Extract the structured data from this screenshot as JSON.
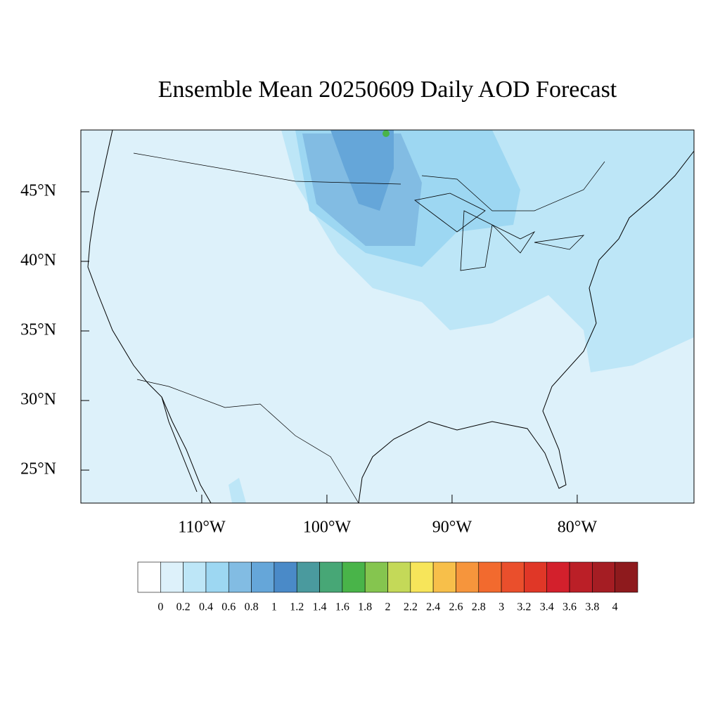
{
  "title": "Ensemble Mean 20250609 Daily AOD Forecast",
  "map": {
    "xlim": [
      -119.66,
      -70.67
    ],
    "ylim": [
      22.63,
      49.44
    ],
    "xticks": [
      {
        "value": -110,
        "label": "110°W"
      },
      {
        "value": -100,
        "label": "100°W"
      },
      {
        "value": -90,
        "label": "90°W"
      },
      {
        "value": -80,
        "label": "80°W"
      }
    ],
    "yticks": [
      {
        "value": 25,
        "label": "25°N"
      },
      {
        "value": 30,
        "label": "30°N"
      },
      {
        "value": 35,
        "label": "35°N"
      },
      {
        "value": 40,
        "label": "40°N"
      },
      {
        "value": 45,
        "label": "45°N"
      }
    ]
  },
  "colorbar": {
    "levels": [
      0,
      0.2,
      0.4,
      0.6,
      0.8,
      1,
      1.2,
      1.4,
      1.6,
      1.8,
      2,
      2.2,
      2.4,
      2.6,
      2.8,
      3,
      3.2,
      3.4,
      3.6,
      3.8,
      4
    ],
    "colors": [
      "#ffffff",
      "#ddf1fa",
      "#bde6f7",
      "#9dd7f2",
      "#82bce3",
      "#65a6d9",
      "#4a8ac8",
      "#4a9a9e",
      "#47a776",
      "#49b449",
      "#85c54f",
      "#c4d958",
      "#f7e55a",
      "#f7bf4a",
      "#f6953c",
      "#f26a2e",
      "#ea4f2c",
      "#e03727",
      "#d3202c",
      "#bb1f27",
      "#a51d23",
      "#8e1a1d"
    ]
  }
}
